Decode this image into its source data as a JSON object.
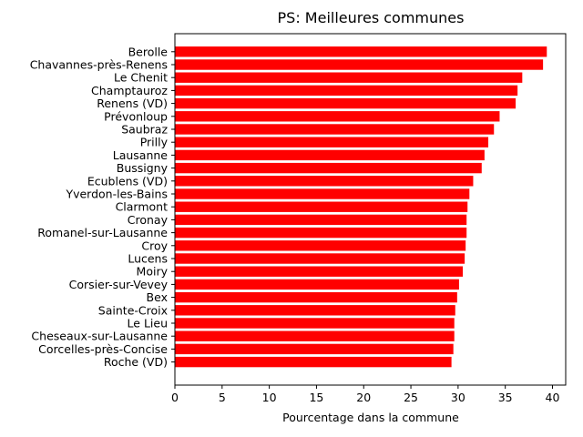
{
  "chart_data": {
    "type": "bar",
    "orientation": "horizontal",
    "title": "PS: Meilleures communes",
    "xlabel": "Pourcentage dans la commune",
    "ylabel": "",
    "xlim": [
      0,
      41.4
    ],
    "xticks": [
      0,
      5,
      10,
      15,
      20,
      25,
      30,
      35,
      40
    ],
    "bar_color": "#ff0000",
    "grid": false,
    "categories": [
      "Berolle",
      "Chavannes-près-Renens",
      "Le Chenit",
      "Champtauroz",
      "Renens (VD)",
      "Prévonloup",
      "Saubraz",
      "Prilly",
      "Lausanne",
      "Bussigny",
      "Ecublens (VD)",
      "Yverdon-les-Bains",
      "Clarmont",
      "Cronay",
      "Romanel-sur-Lausanne",
      "Croy",
      "Lucens",
      "Moiry",
      "Corsier-sur-Vevey",
      "Bex",
      "Sainte-Croix",
      "Le Lieu",
      "Cheseaux-sur-Lausanne",
      "Corcelles-près-Concise",
      "Roche (VD)"
    ],
    "values": [
      39.4,
      39.0,
      36.8,
      36.3,
      36.1,
      34.4,
      33.8,
      33.2,
      32.8,
      32.5,
      31.6,
      31.2,
      31.0,
      30.9,
      30.9,
      30.8,
      30.7,
      30.5,
      30.1,
      29.9,
      29.7,
      29.6,
      29.6,
      29.5,
      29.3
    ]
  }
}
